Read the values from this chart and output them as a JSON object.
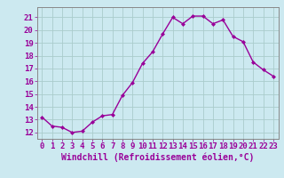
{
  "x": [
    0,
    1,
    2,
    3,
    4,
    5,
    6,
    7,
    8,
    9,
    10,
    11,
    12,
    13,
    14,
    15,
    16,
    17,
    18,
    19,
    20,
    21,
    22,
    23
  ],
  "y": [
    13.2,
    12.5,
    12.4,
    12.0,
    12.1,
    12.8,
    13.3,
    13.4,
    14.9,
    15.9,
    17.4,
    18.3,
    19.7,
    21.0,
    20.5,
    21.1,
    21.1,
    20.5,
    20.8,
    19.5,
    19.1,
    17.5,
    16.9,
    16.4
  ],
  "line_color": "#990099",
  "marker": "D",
  "marker_size": 2.0,
  "line_width": 1.0,
  "xlabel": "Windchill (Refroidissement éolien,°C)",
  "xlabel_fontsize": 7,
  "xtick_labels": [
    "0",
    "1",
    "2",
    "3",
    "4",
    "5",
    "6",
    "7",
    "8",
    "9",
    "10",
    "11",
    "12",
    "13",
    "14",
    "15",
    "16",
    "17",
    "18",
    "19",
    "20",
    "21",
    "22",
    "23"
  ],
  "ytick_values": [
    12,
    13,
    14,
    15,
    16,
    17,
    18,
    19,
    20,
    21
  ],
  "ylim": [
    11.5,
    21.8
  ],
  "xlim": [
    -0.5,
    23.5
  ],
  "background_color": "#cce9f0",
  "grid_color": "#b0d8e0",
  "tick_fontsize": 6.5,
  "axis_color": "#888888"
}
